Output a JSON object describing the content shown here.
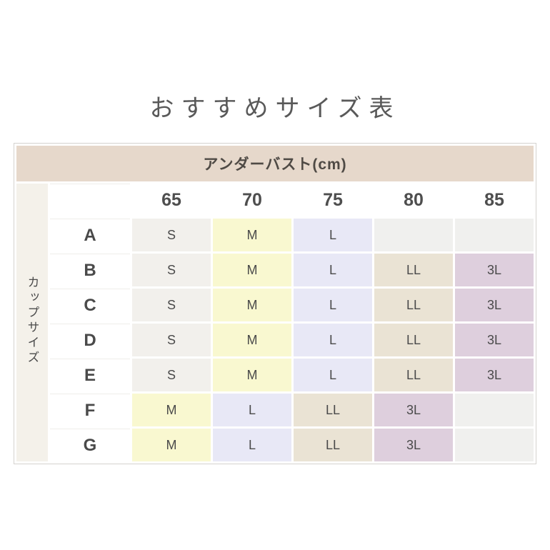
{
  "page_title": "おすすめサイズ表",
  "size_chart": {
    "column_group_header": "アンダーバスト(cm)",
    "row_group_header": "カップサイズ",
    "underbust_columns": [
      "65",
      "70",
      "75",
      "80",
      "85"
    ],
    "rows": [
      {
        "cup": "A",
        "sizes": [
          "S",
          "M",
          "L",
          "",
          ""
        ]
      },
      {
        "cup": "B",
        "sizes": [
          "S",
          "M",
          "L",
          "LL",
          "3L"
        ]
      },
      {
        "cup": "C",
        "sizes": [
          "S",
          "M",
          "L",
          "LL",
          "3L"
        ]
      },
      {
        "cup": "D",
        "sizes": [
          "S",
          "M",
          "L",
          "LL",
          "3L"
        ]
      },
      {
        "cup": "E",
        "sizes": [
          "S",
          "M",
          "L",
          "LL",
          "3L"
        ]
      },
      {
        "cup": "F",
        "sizes": [
          "M",
          "L",
          "LL",
          "3L",
          ""
        ]
      },
      {
        "cup": "G",
        "sizes": [
          "M",
          "L",
          "LL",
          "3L",
          ""
        ]
      }
    ]
  },
  "colors": {
    "header_band_bg": "#e6d8cb",
    "side_label_bg": "#f4f1ea",
    "size_S_bg": "#f2f0ec",
    "size_M_bg": "#f9f8d0",
    "size_L_bg": "#e8e8f6",
    "size_LL_bg": "#eae3d4",
    "size_3L_bg": "#decfdd",
    "empty_cell_bg": "#f0f0ee",
    "title_text": "#595959",
    "cell_text": "#4a4a4a"
  },
  "chart_data": {
    "type": "table",
    "title": "おすすめサイズ表",
    "column_header": "アンダーバスト(cm)",
    "row_header": "カップサイズ",
    "columns": [
      "65",
      "70",
      "75",
      "80",
      "85"
    ],
    "row_labels": [
      "A",
      "B",
      "C",
      "D",
      "E",
      "F",
      "G"
    ],
    "cells": [
      [
        "S",
        "M",
        "L",
        "",
        ""
      ],
      [
        "S",
        "M",
        "L",
        "LL",
        "3L"
      ],
      [
        "S",
        "M",
        "L",
        "LL",
        "3L"
      ],
      [
        "S",
        "M",
        "L",
        "LL",
        "3L"
      ],
      [
        "S",
        "M",
        "L",
        "LL",
        "3L"
      ],
      [
        "M",
        "L",
        "LL",
        "3L",
        ""
      ],
      [
        "M",
        "L",
        "LL",
        "3L",
        ""
      ]
    ],
    "legend": {
      "S": "#f2f0ec",
      "M": "#f9f8d0",
      "L": "#e8e8f6",
      "LL": "#eae3d4",
      "3L": "#decfdd"
    }
  }
}
